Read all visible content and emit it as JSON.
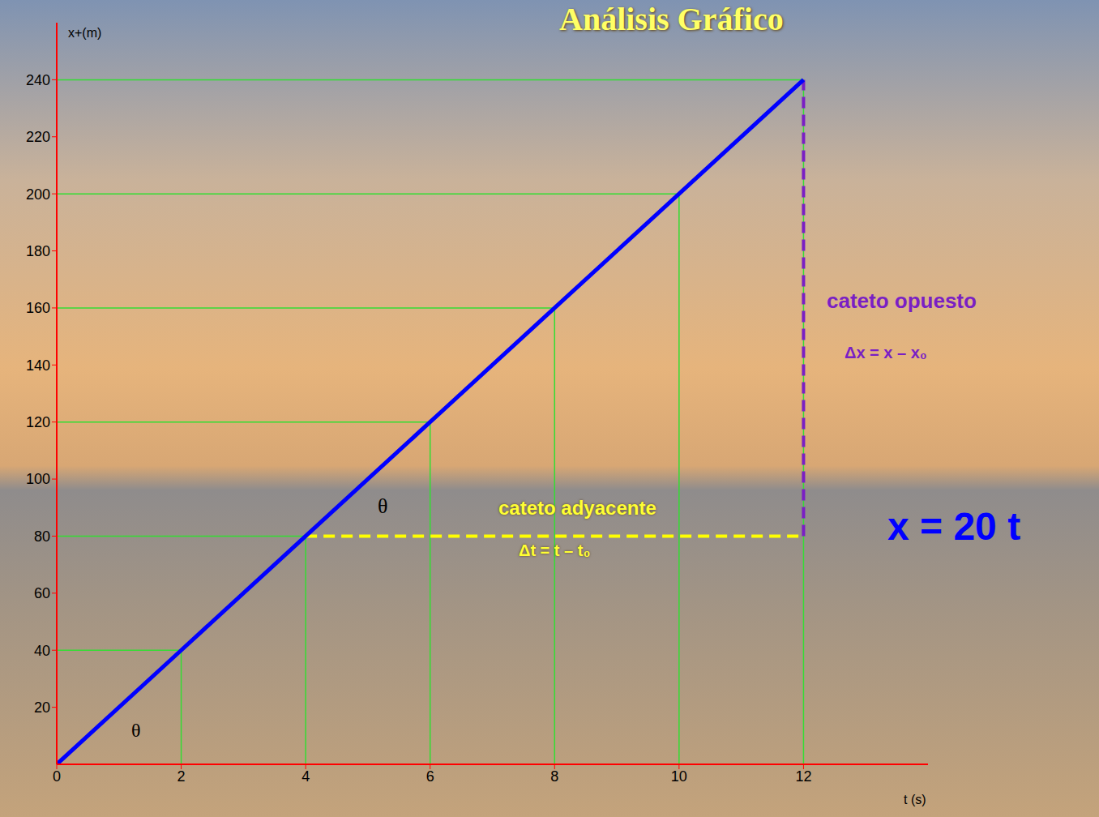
{
  "chart_data": {
    "type": "line",
    "title": "Análisis Gráfico",
    "x_label": "t (s)",
    "y_label": "x+(m)",
    "x": [
      0,
      2,
      4,
      6,
      8,
      10,
      12
    ],
    "values": [
      0,
      40,
      80,
      120,
      160,
      200,
      240
    ],
    "color": "#0000ff",
    "xlim": [
      0,
      14
    ],
    "xticks": [
      0,
      2,
      4,
      6,
      8,
      10,
      12
    ],
    "ylim": [
      0,
      260
    ],
    "yticks": [
      20,
      40,
      60,
      80,
      100,
      120,
      140,
      160,
      180,
      200,
      220,
      240
    ],
    "grid": false,
    "annotations": [
      "cateto opuesto",
      "Δx = x – x₀",
      "cateto adyacente",
      "Δt = t – t₀",
      "x = 20 t",
      "θ",
      "θ"
    ]
  }
}
